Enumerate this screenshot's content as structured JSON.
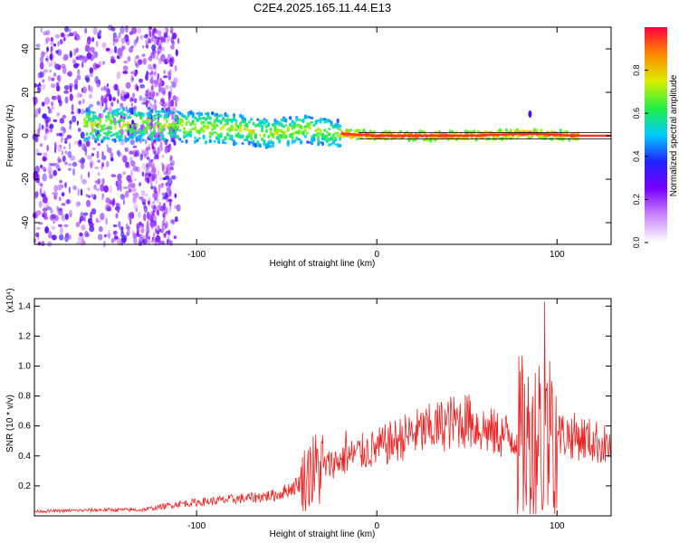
{
  "title": "C2E4.2025.165.11.44.E13",
  "colors": {
    "spectrum_low": "#7a00ff",
    "spectrum_high": "#ff0040",
    "snr_line": "#ee2222"
  },
  "chart_data": [
    {
      "type": "heatmap",
      "title": "C2E4.2025.165.11.44.E13",
      "xlabel": "Height of straight line (km)",
      "ylabel": "Frequency (Hz)",
      "xlim": [
        -190,
        130
      ],
      "ylim": [
        -50,
        50
      ],
      "x_ticks": [
        "-100",
        "0",
        "100"
      ],
      "y_ticks": [
        "40",
        "20",
        "0",
        "-20",
        "-40"
      ],
      "colorbar": {
        "label": "Normalized spectral amplitude",
        "range": [
          0.0,
          1.0
        ],
        "ticks": [
          "0.0",
          "0.2",
          "0.4",
          "0.6",
          "0.8"
        ],
        "colormap": [
          "#ffffff",
          "#cc88ff",
          "#7a00ff",
          "#2222ff",
          "#00ccff",
          "#22ee44",
          "#ddee00",
          "#ff8800",
          "#ff0040"
        ]
      },
      "ridge_frequency_hz": [
        {
          "x": -160,
          "y": 5
        },
        {
          "x": -120,
          "y": 5
        },
        {
          "x": -80,
          "y": 3
        },
        {
          "x": -60,
          "y": 1
        },
        {
          "x": -40,
          "y": 3
        },
        {
          "x": -20,
          "y": 1
        },
        {
          "x": 0,
          "y": 0
        },
        {
          "x": 50,
          "y": 0
        },
        {
          "x": 85,
          "y": 1
        },
        {
          "x": 110,
          "y": 0
        },
        {
          "x": 130,
          "y": 0
        }
      ],
      "grid": false
    },
    {
      "type": "line",
      "xlabel": "Height of straight line (km)",
      "ylabel": "SNR (10 * v/v)",
      "y_scale_label": "(x10⁴)",
      "xlim": [
        -190,
        130
      ],
      "ylim": [
        0,
        1.45
      ],
      "x_ticks": [
        "-100",
        "0",
        "100"
      ],
      "y_ticks": [
        "0.2",
        "0.4",
        "0.6",
        "0.8",
        "1.0",
        "1.2",
        "1.4"
      ],
      "grid": false,
      "series": [
        {
          "points": [
            {
              "x": -190,
              "y": 0.03
            },
            {
              "x": -150,
              "y": 0.04
            },
            {
              "x": -130,
              "y": 0.04
            },
            {
              "x": -110,
              "y": 0.08
            },
            {
              "x": -90,
              "y": 0.1
            },
            {
              "x": -70,
              "y": 0.12
            },
            {
              "x": -55,
              "y": 0.14
            },
            {
              "x": -45,
              "y": 0.2
            },
            {
              "x": -35,
              "y": 0.3
            },
            {
              "x": -25,
              "y": 0.35
            },
            {
              "x": -10,
              "y": 0.42
            },
            {
              "x": 0,
              "y": 0.45
            },
            {
              "x": 10,
              "y": 0.5
            },
            {
              "x": 20,
              "y": 0.55
            },
            {
              "x": 30,
              "y": 0.58
            },
            {
              "x": 40,
              "y": 0.62
            },
            {
              "x": 50,
              "y": 0.64
            },
            {
              "x": 55,
              "y": 0.6
            },
            {
              "x": 65,
              "y": 0.55
            },
            {
              "x": 75,
              "y": 0.53
            },
            {
              "x": 85,
              "y": 0.5
            },
            {
              "x": 95,
              "y": 0.55
            },
            {
              "x": 105,
              "y": 0.54
            },
            {
              "x": 115,
              "y": 0.52
            },
            {
              "x": 125,
              "y": 0.48
            },
            {
              "x": 130,
              "y": 0.46
            }
          ],
          "peaks": [
            {
              "x": 93,
              "y": 1.43
            },
            {
              "x": 81,
              "y": 0.95
            },
            {
              "x": 90,
              "y": 1.0
            },
            {
              "x": 97,
              "y": 0.9
            },
            {
              "x": 52,
              "y": 0.77
            },
            {
              "x": -37,
              "y": 0.46
            },
            {
              "x": -17,
              "y": 0.57
            }
          ],
          "troughs": [
            {
              "x": 83,
              "y": 0.07
            },
            {
              "x": 92,
              "y": 0.05
            }
          ]
        }
      ]
    }
  ]
}
